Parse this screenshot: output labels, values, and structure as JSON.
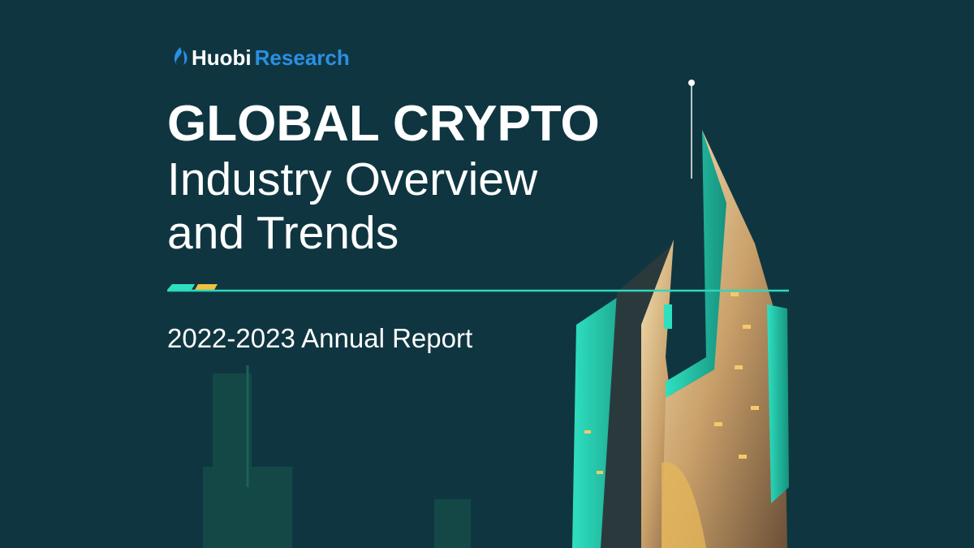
{
  "header": {
    "brand": "Huobi",
    "brand_suffix": "Research"
  },
  "title": {
    "line1": "GLOBAL CRYPTO",
    "line2": "Industry Overview",
    "line3": "and Trends"
  },
  "subtitle": "2022-2023 Annual Report"
}
